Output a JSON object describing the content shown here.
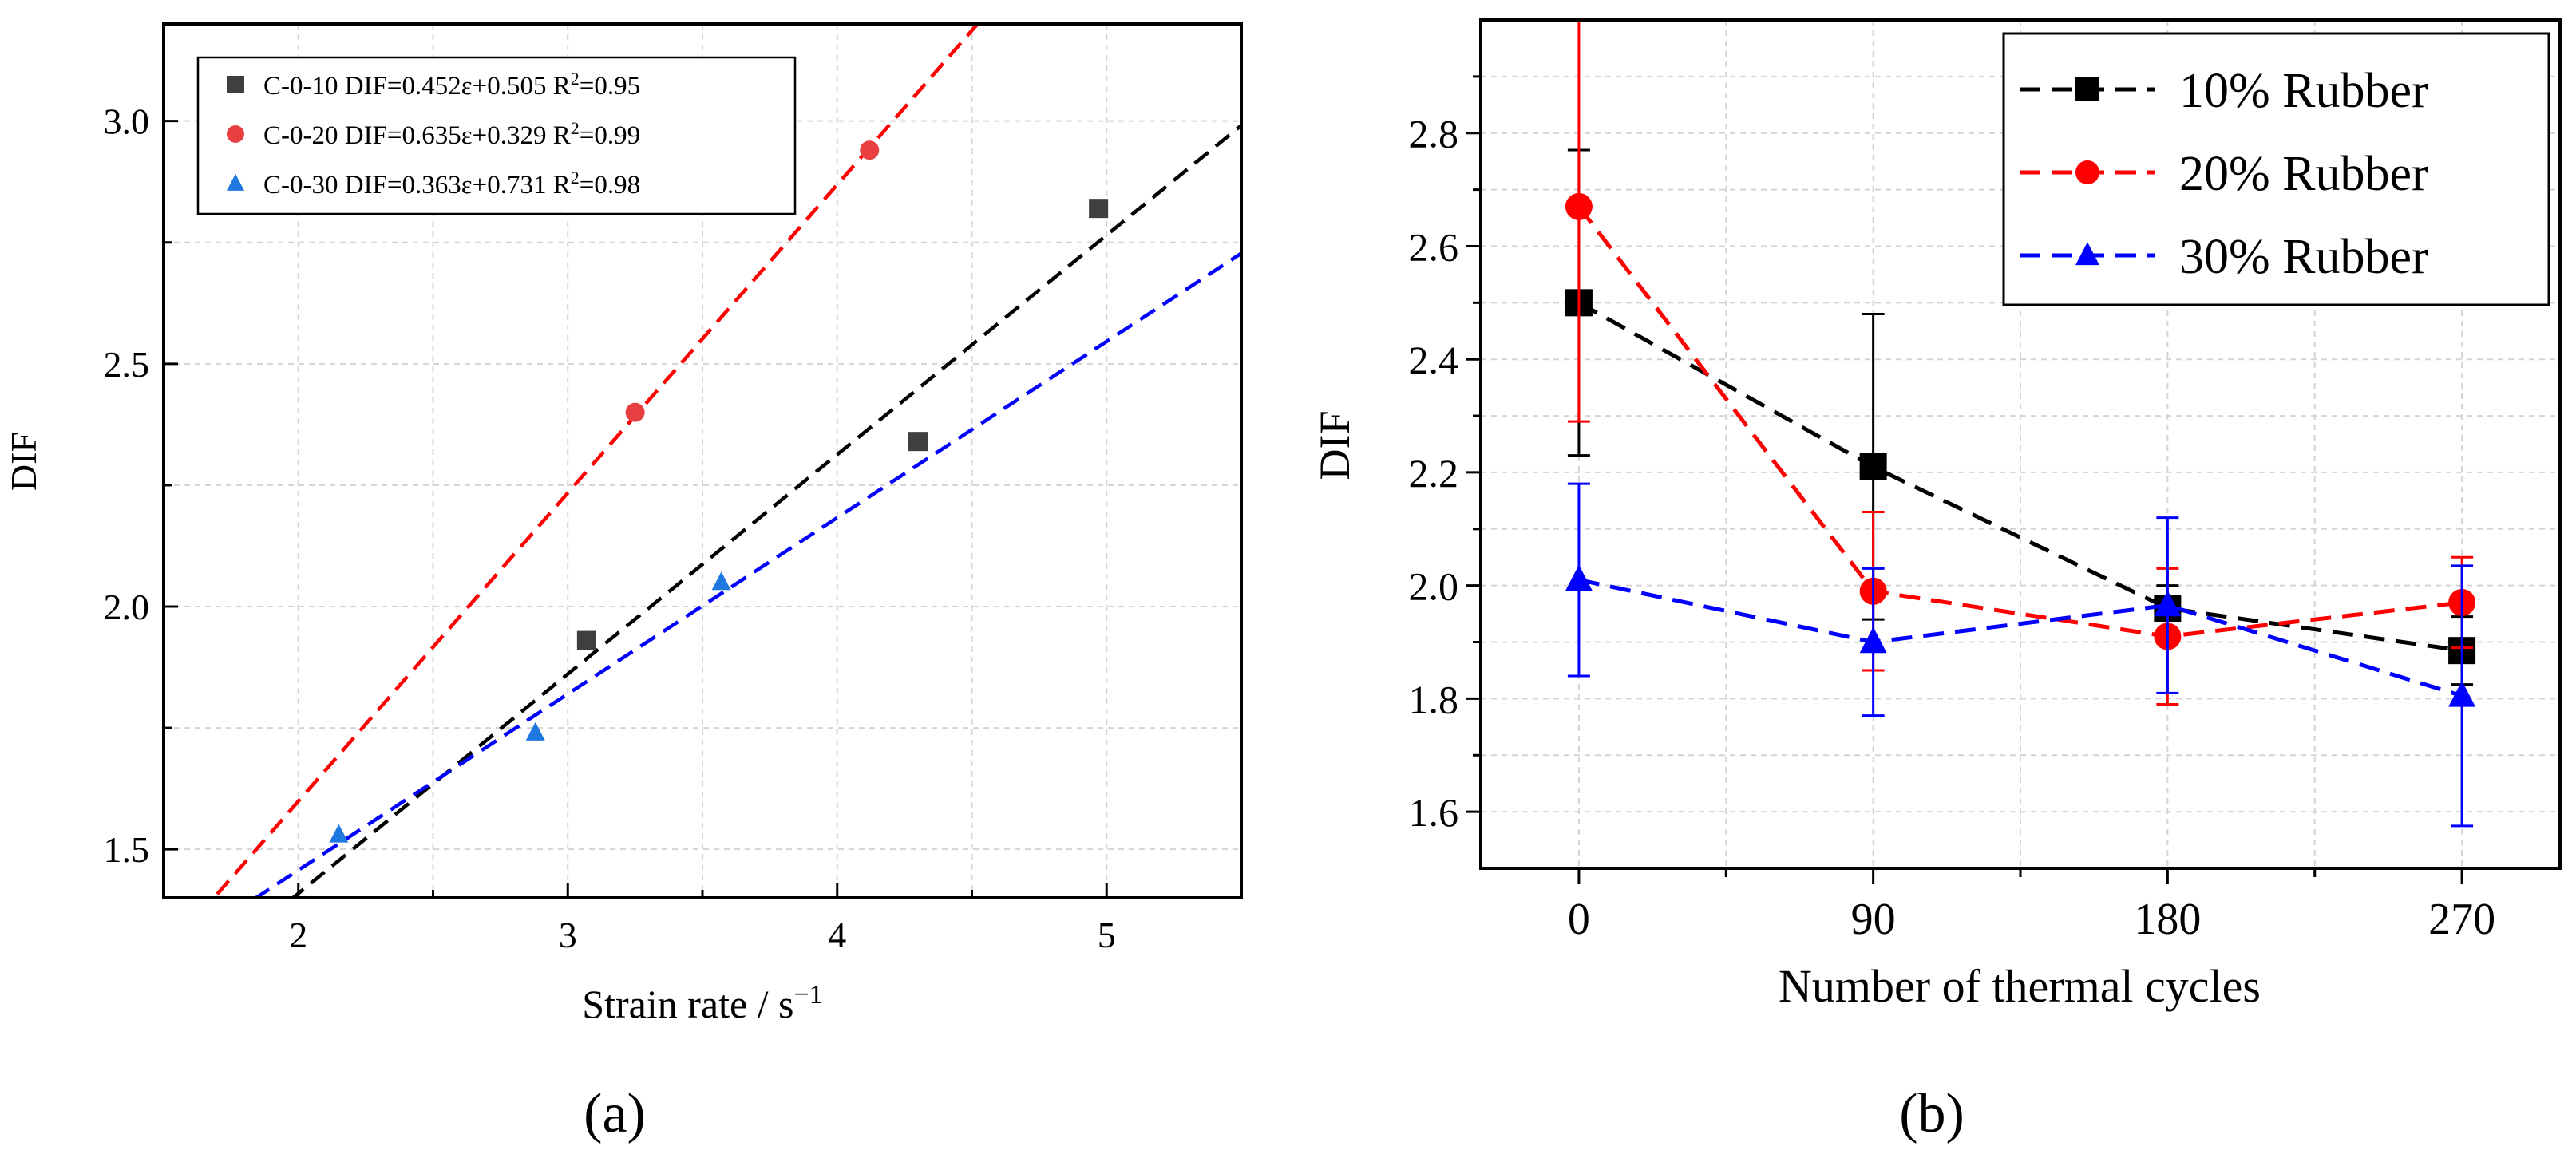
{
  "chart_data": [
    {
      "panel_label": "(a)",
      "type": "scatter",
      "xlabel_main": "Strain rate / s",
      "xlabel_sup": "−1",
      "ylabel": "DIF",
      "xlim": [
        1.5,
        5.5
      ],
      "ylim": [
        1.4,
        3.2
      ],
      "xticks": [
        2,
        3,
        4,
        5
      ],
      "yticks": [
        1.5,
        2.0,
        2.5,
        3.0
      ],
      "ytick_labels": [
        "1.5",
        "2.0",
        "2.5",
        "3.0"
      ],
      "grid": true,
      "legend_position": "top-left",
      "series": [
        {
          "name": "C-0-10",
          "marker": "square",
          "color": "#3f3f3f",
          "line_color": "#000000",
          "fit": {
            "slope": 0.452,
            "intercept": 0.505
          },
          "fit_text_main": "C-0-10 DIF=0.452ε+0.505 R",
          "fit_text_sup": "2",
          "fit_text_tail": "=0.95",
          "points": [
            [
              3.07,
              1.93
            ],
            [
              4.3,
              2.34
            ],
            [
              4.97,
              2.82
            ]
          ]
        },
        {
          "name": "C-0-20",
          "marker": "circle",
          "color": "#e84040",
          "line_color": "#ff0000",
          "fit": {
            "slope": 0.635,
            "intercept": 0.329
          },
          "fit_text_main": "C-0-20 DIF=0.635ε+0.329 R",
          "fit_text_sup": "2",
          "fit_text_tail": "=0.99",
          "points": [
            [
              3.25,
              2.4
            ],
            [
              4.12,
              2.94
            ]
          ]
        },
        {
          "name": "C-0-30",
          "marker": "triangle",
          "color": "#1e78e0",
          "line_color": "#0000ff",
          "fit": {
            "slope": 0.363,
            "intercept": 0.731
          },
          "fit_text_main": "C-0-30 DIF=0.363ε+0.731 R",
          "fit_text_sup": "2",
          "fit_text_tail": "=0.98",
          "points": [
            [
              2.15,
              1.53
            ],
            [
              2.88,
              1.74
            ],
            [
              3.57,
              2.05
            ]
          ]
        }
      ]
    },
    {
      "panel_label": "(b)",
      "type": "line",
      "xlabel": "Number of thermal cycles",
      "ylabel": "DIF",
      "categories": [
        0,
        90,
        180,
        270
      ],
      "xlim": [
        -30,
        300
      ],
      "ylim": [
        1.5,
        3.0
      ],
      "xticks": [
        0,
        90,
        180,
        270
      ],
      "yticks": [
        1.6,
        1.8,
        2.0,
        2.2,
        2.4,
        2.6,
        2.8
      ],
      "ytick_labels": [
        "1.6",
        "1.8",
        "2.0",
        "2.2",
        "2.4",
        "2.6",
        "2.8"
      ],
      "grid": true,
      "legend_position": "top-right",
      "series": [
        {
          "name": "10% Rubber",
          "marker": "square",
          "color": "#000000",
          "values": [
            2.5,
            2.21,
            1.96,
            1.885
          ],
          "errors": [
            0.27,
            0.27,
            0.04,
            0.06
          ]
        },
        {
          "name": "20% Rubber",
          "marker": "circle",
          "color": "#ff0000",
          "values": [
            2.67,
            1.99,
            1.91,
            1.97
          ],
          "errors": [
            0.38,
            0.14,
            0.12,
            0.08
          ]
        },
        {
          "name": "30% Rubber",
          "marker": "triangle",
          "color": "#0000ff",
          "values": [
            2.01,
            1.9,
            1.965,
            1.805
          ],
          "errors": [
            0.17,
            0.13,
            0.155,
            0.23
          ]
        }
      ]
    }
  ]
}
